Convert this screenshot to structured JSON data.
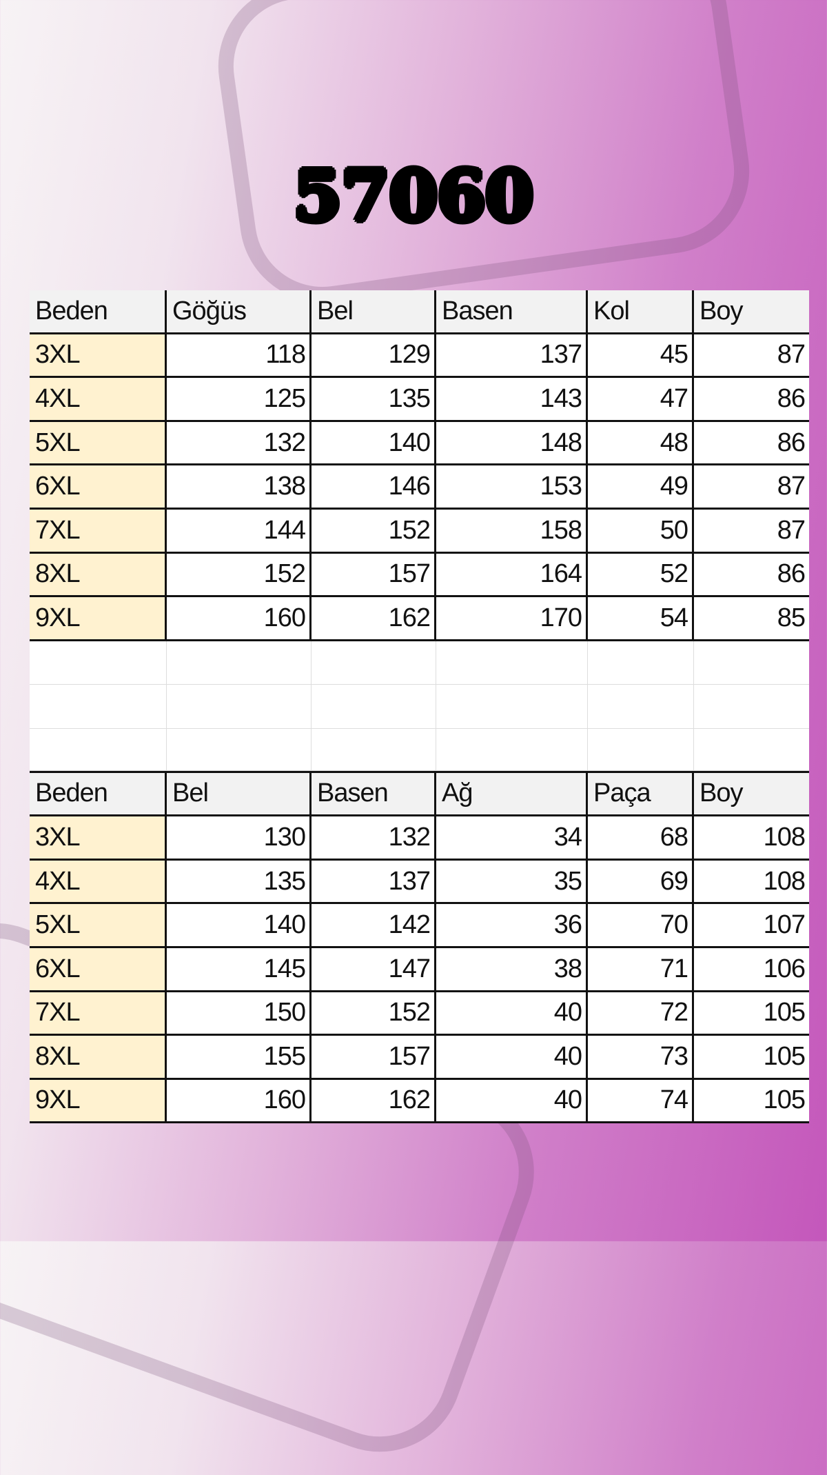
{
  "title": "57060",
  "colors": {
    "size_cell": "#fff2d0",
    "header_cell": "#f2f2f2",
    "background_accent": "#c457bb"
  },
  "table_top": {
    "headers": [
      "Beden",
      "Göğüs",
      "Bel",
      "Basen",
      "Kol",
      "Boy"
    ],
    "rows": [
      [
        "3XL",
        "118",
        "129",
        "137",
        "45",
        "87"
      ],
      [
        "4XL",
        "125",
        "135",
        "143",
        "47",
        "86"
      ],
      [
        "5XL",
        "132",
        "140",
        "148",
        "48",
        "86"
      ],
      [
        "6XL",
        "138",
        "146",
        "153",
        "49",
        "87"
      ],
      [
        "7XL",
        "144",
        "152",
        "158",
        "50",
        "87"
      ],
      [
        "8XL",
        "152",
        "157",
        "164",
        "52",
        "86"
      ],
      [
        "9XL",
        "160",
        "162",
        "170",
        "54",
        "85"
      ]
    ]
  },
  "table_bottom": {
    "headers": [
      "Beden",
      "Bel",
      "Basen",
      "Ağ",
      "Paça",
      "Boy"
    ],
    "rows": [
      [
        "3XL",
        "130",
        "132",
        "34",
        "68",
        "108"
      ],
      [
        "4XL",
        "135",
        "137",
        "35",
        "69",
        "108"
      ],
      [
        "5XL",
        "140",
        "142",
        "36",
        "70",
        "107"
      ],
      [
        "6XL",
        "145",
        "147",
        "38",
        "71",
        "106"
      ],
      [
        "7XL",
        "150",
        "152",
        "40",
        "72",
        "105"
      ],
      [
        "8XL",
        "155",
        "157",
        "40",
        "73",
        "105"
      ],
      [
        "9XL",
        "160",
        "162",
        "40",
        "74",
        "105"
      ]
    ]
  }
}
